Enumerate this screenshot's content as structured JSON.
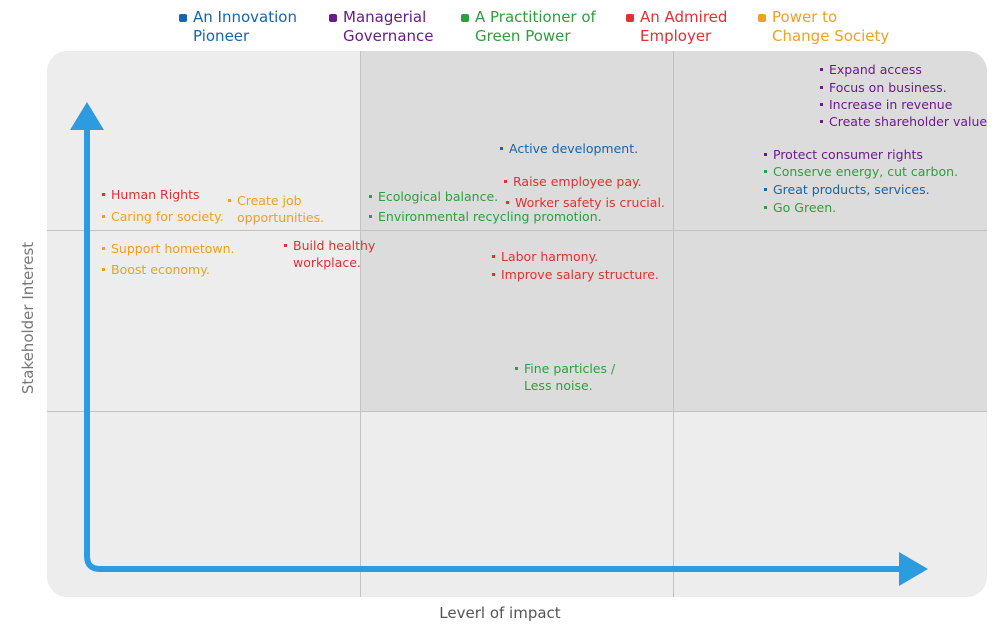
{
  "legend": [
    {
      "key": "innovation",
      "text": "An Innovation\nPioneer",
      "color": "#1565b0"
    },
    {
      "key": "managerial",
      "text": "Managerial\nGovernance",
      "color": "#6a1b8a"
    },
    {
      "key": "green",
      "text": "A Practitioner of\nGreen Power",
      "color": "#2e9e3c"
    },
    {
      "key": "employer",
      "text": "An Admired\nEmployer",
      "color": "#e23030"
    },
    {
      "key": "society",
      "text": "Power to\nChange Society",
      "color": "#f0a020"
    }
  ],
  "axes": {
    "x_title": "Leverl of impact",
    "y_title": "Stakeholder Interest",
    "arrow_color": "#2d9be0"
  },
  "items": [
    {
      "text": "Human Rights",
      "category": "employer"
    },
    {
      "text": "Caring for society.",
      "category": "society"
    },
    {
      "text": "Create job\nopportunities.",
      "category": "society"
    },
    {
      "text": "Support hometown.",
      "category": "society"
    },
    {
      "text": "Boost economy.",
      "category": "society"
    },
    {
      "text": "Build healthy\nworkplace.",
      "category": "employer"
    },
    {
      "text": "Active development.",
      "category": "innovation"
    },
    {
      "text": "Ecological balance.",
      "category": "green"
    },
    {
      "text": "Raise employee pay.",
      "category": "employer"
    },
    {
      "text": "Worker safety is crucial.",
      "category": "employer"
    },
    {
      "text": "Environmental recycling promotion.",
      "category": "green"
    },
    {
      "text": "Labor harmony.",
      "category": "employer"
    },
    {
      "text": "Improve salary structure.",
      "category": "employer"
    },
    {
      "text": "Fine particles /\nLess noise.",
      "category": "green"
    },
    {
      "text": "Expand access",
      "category": "managerial"
    },
    {
      "text": "Focus on business.",
      "category": "managerial"
    },
    {
      "text": "Increase in revenue",
      "category": "managerial"
    },
    {
      "text": "Create shareholder value",
      "category": "managerial"
    },
    {
      "text": "Protect consumer rights",
      "category": "managerial"
    },
    {
      "text": "Conserve energy, cut carbon.",
      "category": "green"
    },
    {
      "text": "Great products, services.",
      "category": "innovation"
    },
    {
      "text": "Go Green.",
      "category": "green"
    }
  ]
}
